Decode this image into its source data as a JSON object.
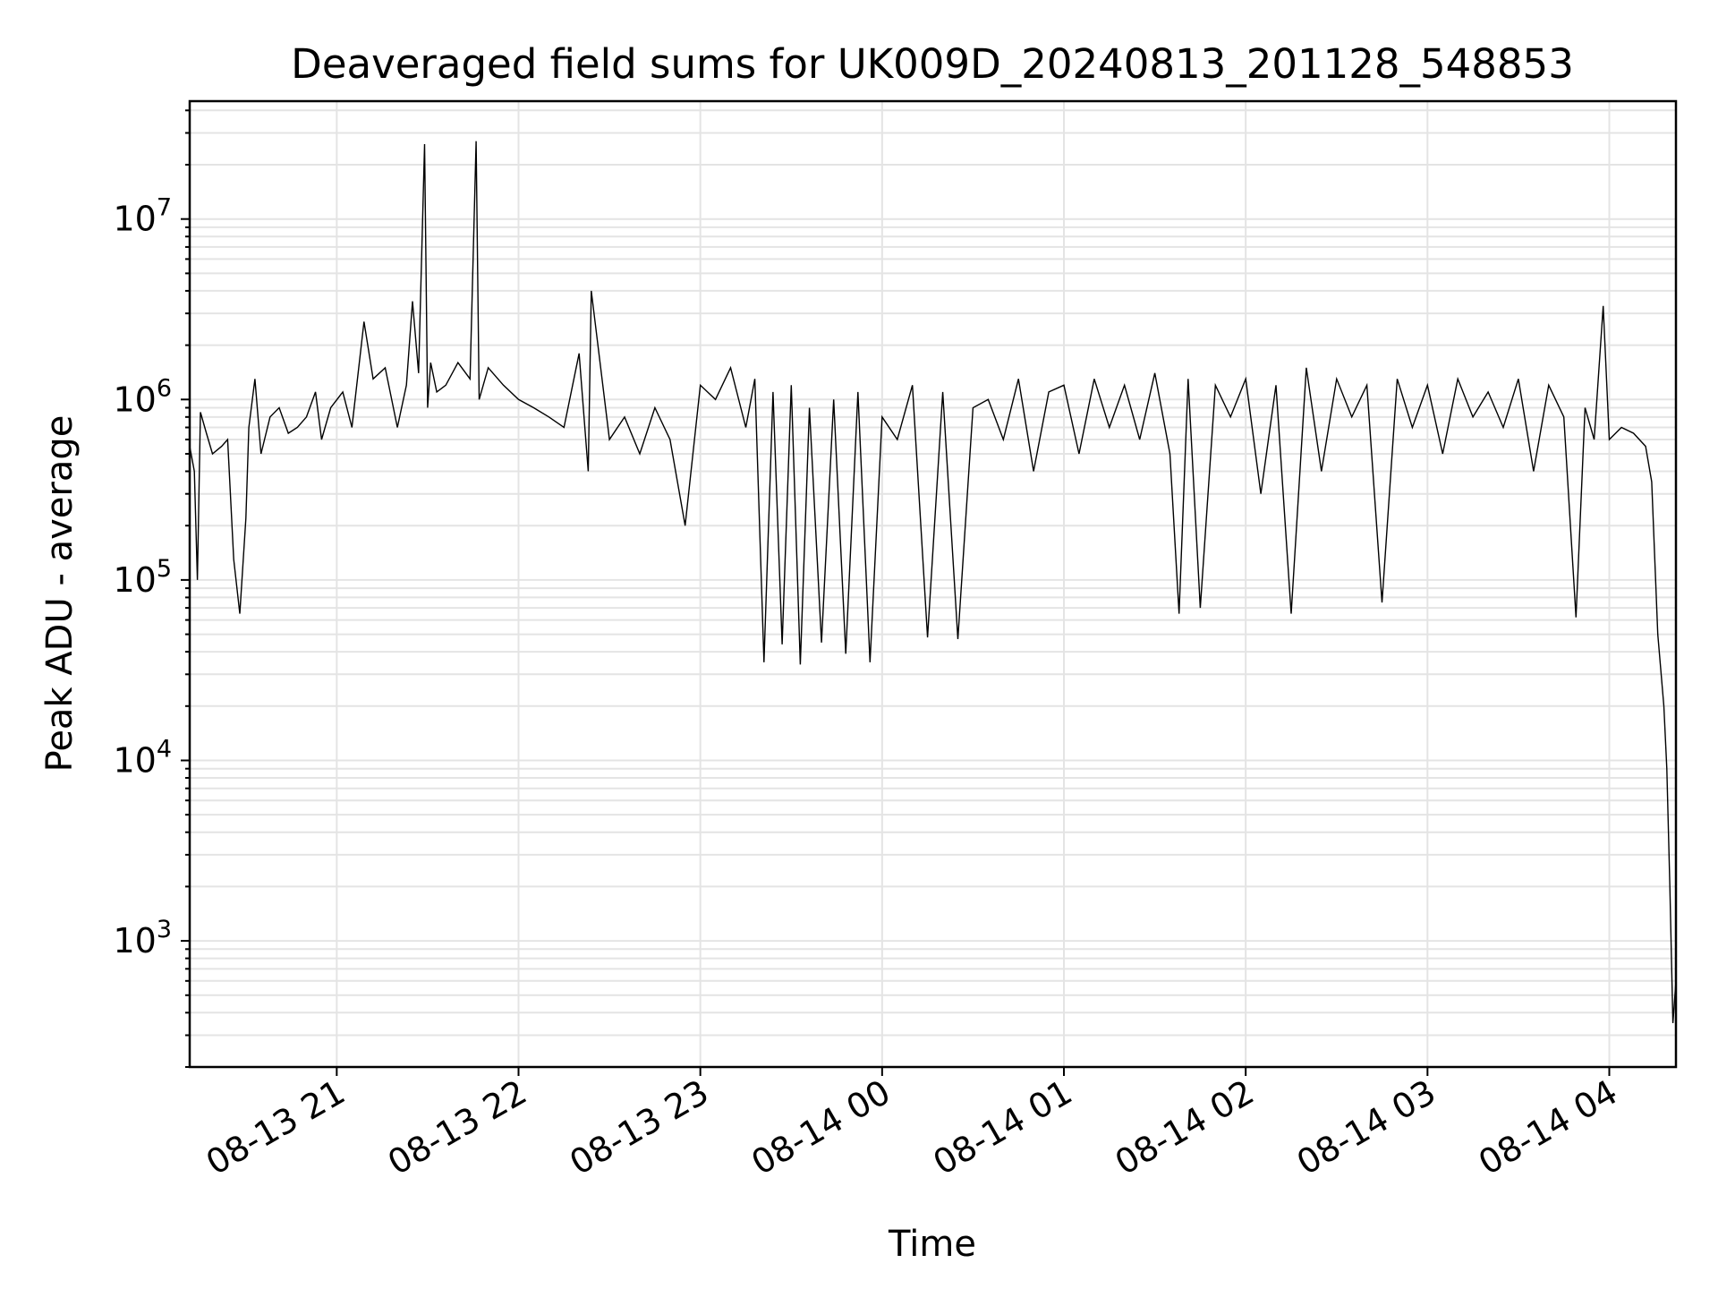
{
  "chart_data": {
    "type": "line",
    "title": "Deaveraged field sums for UK009D_20240813_201128_548853",
    "xlabel": "Time",
    "ylabel": "Peak ADU - average",
    "y_scale": "log",
    "ylim": [
      200,
      45000000
    ],
    "xlim": [
      "2024-08-13 20:11:28",
      "2024-08-14 04:22:00"
    ],
    "grid": true,
    "line_color": "#000000",
    "grid_color": "#e4e4e4",
    "x_ticks": [
      {
        "value": "2024-08-13 21:00",
        "label": "08-13 21"
      },
      {
        "value": "2024-08-13 22:00",
        "label": "08-13 22"
      },
      {
        "value": "2024-08-13 23:00",
        "label": "08-13 23"
      },
      {
        "value": "2024-08-14 00:00",
        "label": "08-14 00"
      },
      {
        "value": "2024-08-14 01:00",
        "label": "08-14 01"
      },
      {
        "value": "2024-08-14 02:00",
        "label": "08-14 02"
      },
      {
        "value": "2024-08-14 03:00",
        "label": "08-14 03"
      },
      {
        "value": "2024-08-14 04:00",
        "label": "08-14 04"
      }
    ],
    "y_ticks": [
      {
        "value": 1000,
        "base": "10",
        "exp": "3"
      },
      {
        "value": 10000,
        "base": "10",
        "exp": "4"
      },
      {
        "value": 100000,
        "base": "10",
        "exp": "5"
      },
      {
        "value": 1000000,
        "base": "10",
        "exp": "6"
      },
      {
        "value": 10000000,
        "base": "10",
        "exp": "7"
      }
    ],
    "series": [
      {
        "x": [
          "2024-08-13 20:11:28",
          "2024-08-13 20:13:00",
          "2024-08-13 20:14:00",
          "2024-08-13 20:15:00",
          "2024-08-13 20:17:00",
          "2024-08-13 20:19:00",
          "2024-08-13 20:22:00",
          "2024-08-13 20:24:00",
          "2024-08-13 20:26:00",
          "2024-08-13 20:28:00",
          "2024-08-13 20:30:00",
          "2024-08-13 20:31:00",
          "2024-08-13 20:33:00",
          "2024-08-13 20:35:00",
          "2024-08-13 20:38:00",
          "2024-08-13 20:41:00",
          "2024-08-13 20:44:00",
          "2024-08-13 20:47:00",
          "2024-08-13 20:50:00",
          "2024-08-13 20:53:00",
          "2024-08-13 20:55:00",
          "2024-08-13 20:58:00",
          "2024-08-13 21:02:00",
          "2024-08-13 21:05:00",
          "2024-08-13 21:09:00",
          "2024-08-13 21:12:00",
          "2024-08-13 21:16:00",
          "2024-08-13 21:20:00",
          "2024-08-13 21:23:00",
          "2024-08-13 21:25:00",
          "2024-08-13 21:27:00",
          "2024-08-13 21:29:00",
          "2024-08-13 21:30:00",
          "2024-08-13 21:31:00",
          "2024-08-13 21:33:00",
          "2024-08-13 21:36:00",
          "2024-08-13 21:40:00",
          "2024-08-13 21:44:00",
          "2024-08-13 21:46:00",
          "2024-08-13 21:47:00",
          "2024-08-13 21:50:00",
          "2024-08-13 21:55:00",
          "2024-08-13 22:00:00",
          "2024-08-13 22:05:00",
          "2024-08-13 22:10:00",
          "2024-08-13 22:15:00",
          "2024-08-13 22:20:00",
          "2024-08-13 22:23:00",
          "2024-08-13 22:24:00",
          "2024-08-13 22:30:00",
          "2024-08-13 22:35:00",
          "2024-08-13 22:40:00",
          "2024-08-13 22:45:00",
          "2024-08-13 22:50:00",
          "2024-08-13 22:55:00",
          "2024-08-13 23:00:00",
          "2024-08-13 23:05:00",
          "2024-08-13 23:10:00",
          "2024-08-13 23:15:00",
          "2024-08-13 23:18:00",
          "2024-08-13 23:21:00",
          "2024-08-13 23:24:00",
          "2024-08-13 23:27:00",
          "2024-08-13 23:30:00",
          "2024-08-13 23:33:00",
          "2024-08-13 23:36:00",
          "2024-08-13 23:40:00",
          "2024-08-13 23:44:00",
          "2024-08-13 23:48:00",
          "2024-08-13 23:52:00",
          "2024-08-13 23:56:00",
          "2024-08-14 00:00:00",
          "2024-08-14 00:05:00",
          "2024-08-14 00:10:00",
          "2024-08-14 00:15:00",
          "2024-08-14 00:20:00",
          "2024-08-14 00:25:00",
          "2024-08-14 00:30:00",
          "2024-08-14 00:35:00",
          "2024-08-14 00:40:00",
          "2024-08-14 00:45:00",
          "2024-08-14 00:50:00",
          "2024-08-14 00:55:00",
          "2024-08-14 01:00:00",
          "2024-08-14 01:05:00",
          "2024-08-14 01:10:00",
          "2024-08-14 01:15:00",
          "2024-08-14 01:20:00",
          "2024-08-14 01:25:00",
          "2024-08-14 01:30:00",
          "2024-08-14 01:35:00",
          "2024-08-14 01:38:00",
          "2024-08-14 01:41:00",
          "2024-08-14 01:45:00",
          "2024-08-14 01:50:00",
          "2024-08-14 01:55:00",
          "2024-08-14 02:00:00",
          "2024-08-14 02:05:00",
          "2024-08-14 02:10:00",
          "2024-08-14 02:15:00",
          "2024-08-14 02:20:00",
          "2024-08-14 02:25:00",
          "2024-08-14 02:30:00",
          "2024-08-14 02:35:00",
          "2024-08-14 02:40:00",
          "2024-08-14 02:45:00",
          "2024-08-14 02:50:00",
          "2024-08-14 02:55:00",
          "2024-08-14 03:00:00",
          "2024-08-14 03:05:00",
          "2024-08-14 03:10:00",
          "2024-08-14 03:15:00",
          "2024-08-14 03:20:00",
          "2024-08-14 03:25:00",
          "2024-08-14 03:30:00",
          "2024-08-14 03:35:00",
          "2024-08-14 03:40:00",
          "2024-08-14 03:45:00",
          "2024-08-14 03:49:00",
          "2024-08-14 03:52:00",
          "2024-08-14 03:55:00",
          "2024-08-14 03:58:00",
          "2024-08-14 04:00:00",
          "2024-08-14 04:04:00",
          "2024-08-14 04:08:00",
          "2024-08-14 04:12:00",
          "2024-08-14 04:14:00",
          "2024-08-14 04:16:00",
          "2024-08-14 04:18:00",
          "2024-08-14 04:19:00",
          "2024-08-14 04:20:00",
          "2024-08-14 04:21:00",
          "2024-08-14 04:22:00"
        ],
        "values": [
          550000,
          400000,
          100000,
          850000,
          650000,
          500000,
          550000,
          600000,
          130000,
          65000,
          220000,
          700000,
          1300000,
          500000,
          800000,
          900000,
          650000,
          700000,
          800000,
          1100000,
          600000,
          900000,
          1100000,
          700000,
          2700000,
          1300000,
          1500000,
          700000,
          1200000,
          3500000,
          1400000,
          26000000,
          900000,
          1600000,
          1100000,
          1200000,
          1600000,
          1300000,
          27000000,
          1000000,
          1500000,
          1200000,
          1000000,
          900000,
          800000,
          700000,
          1800000,
          400000,
          4000000,
          600000,
          800000,
          500000,
          900000,
          600000,
          200000,
          1200000,
          1000000,
          1500000,
          700000,
          1300000,
          35000,
          1100000,
          44000,
          1200000,
          34000,
          900000,
          45000,
          1000000,
          39000,
          1100000,
          35000,
          800000,
          600000,
          1200000,
          48000,
          1100000,
          47000,
          900000,
          1000000,
          600000,
          1300000,
          400000,
          1100000,
          1200000,
          500000,
          1300000,
          700000,
          1200000,
          600000,
          1400000,
          500000,
          65000,
          1300000,
          70000,
          1200000,
          800000,
          1300000,
          300000,
          1200000,
          65000,
          1500000,
          400000,
          1300000,
          800000,
          1200000,
          75000,
          1300000,
          700000,
          1200000,
          500000,
          1300000,
          800000,
          1100000,
          700000,
          1300000,
          400000,
          1200000,
          800000,
          62000,
          900000,
          600000,
          3300000,
          600000,
          700000,
          650000,
          550000,
          350000,
          50000,
          20000,
          9000,
          2000,
          350,
          600
        ]
      }
    ]
  }
}
